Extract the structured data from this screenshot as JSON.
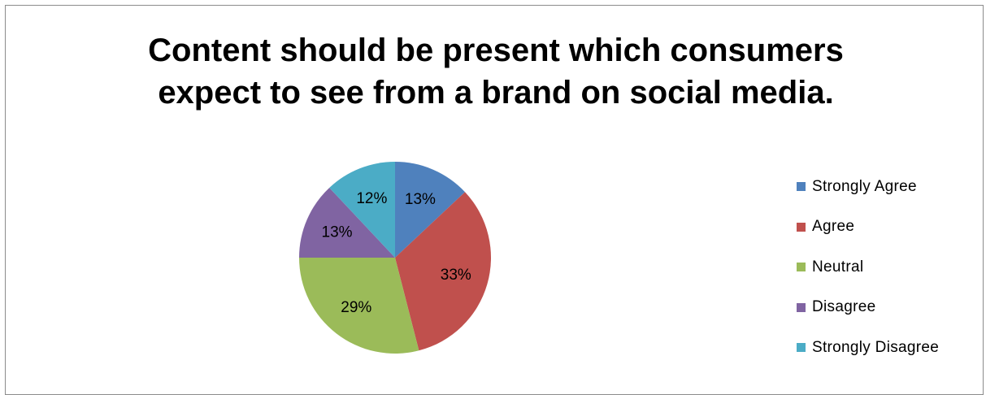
{
  "chart_data": {
    "type": "pie",
    "title": "Content should be present which consumers expect to see from a brand on social media.",
    "title_lines": [
      "Content should be present which consumers",
      "expect to see from a brand on social media."
    ],
    "categories": [
      "Strongly Agree",
      "Agree",
      "Neutral",
      "Disagree",
      "Strongly Disagree"
    ],
    "values": [
      13,
      33,
      29,
      13,
      12
    ],
    "data_labels": [
      "13%",
      "33%",
      "29%",
      "13%",
      "12%"
    ],
    "colors": [
      "#4f81bd",
      "#c0504d",
      "#9bbb59",
      "#8064a2",
      "#4bacc6"
    ],
    "legend_position": "right"
  }
}
